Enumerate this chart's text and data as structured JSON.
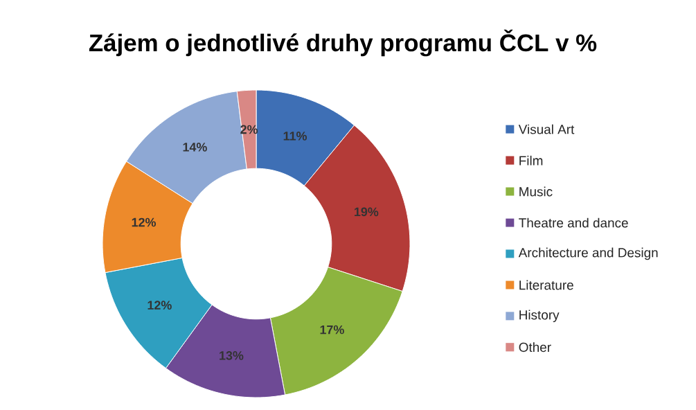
{
  "chart_data": {
    "type": "donut",
    "title": "Zájem o jednotlivé druhy programu ČCL v %",
    "categories": [
      "Visual Art",
      "Film",
      "Music",
      "Theatre and dance",
      "Architecture and Design",
      "Literature",
      "History",
      "Other"
    ],
    "values": [
      11,
      19,
      17,
      13,
      12,
      12,
      14,
      2
    ],
    "value_labels": [
      "11%",
      "19%",
      "17%",
      "13%",
      "12%",
      "12%",
      "14%",
      "2%"
    ],
    "colors": [
      "#3e6fb5",
      "#b43b38",
      "#8db43f",
      "#6e4a95",
      "#2f9fc0",
      "#ed8a2b",
      "#8ea8d4",
      "#d98885"
    ],
    "legend": "right"
  }
}
